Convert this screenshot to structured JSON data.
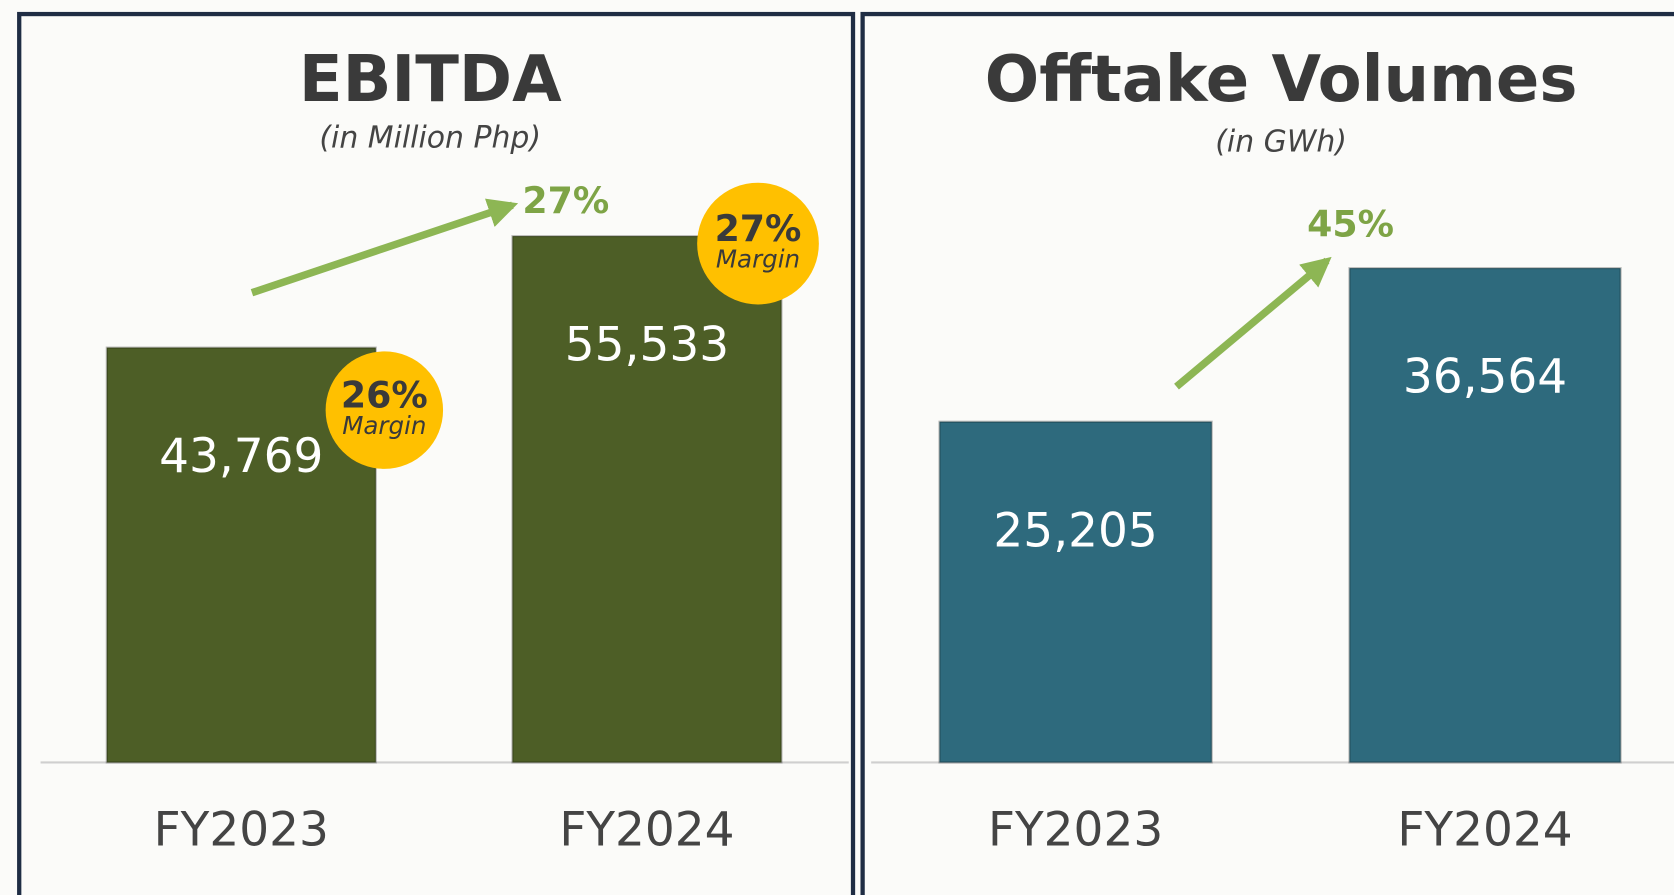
{
  "chart_data": [
    {
      "type": "bar",
      "title": "EBITDA",
      "subtitle": "(in Million Php)",
      "categories": [
        "FY2023",
        "FY2024"
      ],
      "values": [
        43769,
        55533
      ],
      "value_labels": [
        "43,769",
        "55,533"
      ],
      "color": "#4d5e26",
      "growth_label": "27%",
      "margin_labels": [
        "26%",
        "27%"
      ],
      "margin_caption": "Margin"
    },
    {
      "type": "bar",
      "title": "Offtake Volumes",
      "subtitle": "(in GWh)",
      "categories": [
        "FY2023",
        "FY2024"
      ],
      "values": [
        25205,
        36564
      ],
      "value_labels": [
        "25,205",
        "36,564"
      ],
      "color": "#2e6a7d",
      "growth_label": "45%"
    }
  ]
}
